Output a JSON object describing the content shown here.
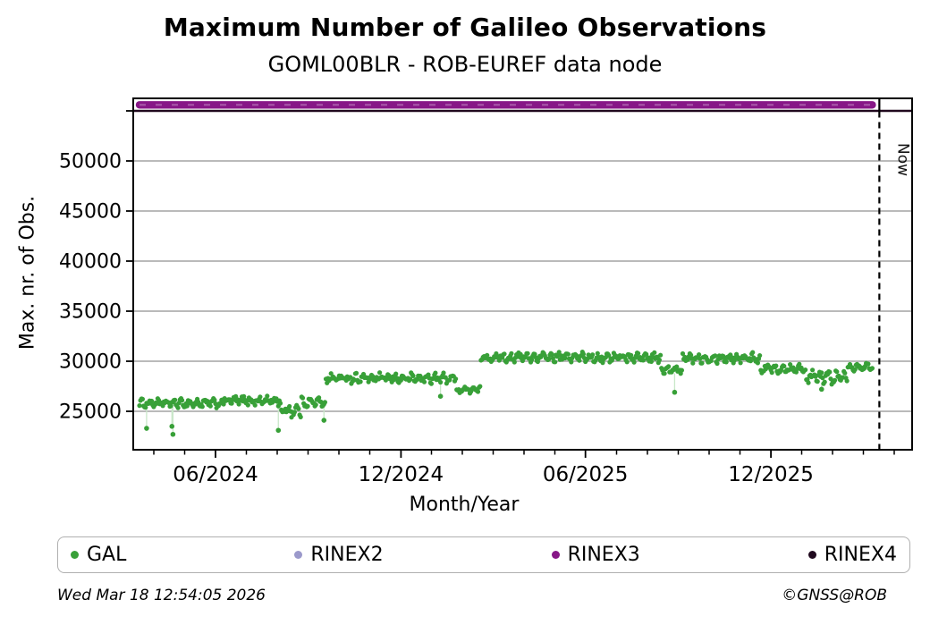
{
  "title": "Maximum Number of Galileo Observations",
  "subtitle": "GOML00BLR - ROB-EUREF data node",
  "footer": {
    "timestamp": "Wed Mar 18 12:54:05 2026",
    "credit": "©GNSS@ROB"
  },
  "legend": {
    "items": [
      {
        "label": "GAL",
        "color": "#38a038"
      },
      {
        "label": "RINEX2",
        "color": "#9b99cb"
      },
      {
        "label": "RINEX3",
        "color": "#871787"
      },
      {
        "label": "RINEX4",
        "color": "#20091e"
      }
    ]
  },
  "chart_data": {
    "type": "scatter",
    "title": "Maximum Number of Galileo Observations",
    "subtitle": "GOML00BLR - ROB-EUREF data node",
    "xlabel": "Month/Year",
    "ylabel": "Max. nr. of Obs.",
    "xlim": [
      "2024-03-11",
      "2026-04-19"
    ],
    "ylim": [
      21150,
      56250
    ],
    "grid": true,
    "grid_color": "#b0b0b0",
    "legend_position": "bottom",
    "yticks": [
      {
        "value": 25000,
        "label": "25000"
      },
      {
        "value": 30000,
        "label": "30000"
      },
      {
        "value": 35000,
        "label": "35000"
      },
      {
        "value": 40000,
        "label": "40000"
      },
      {
        "value": 45000,
        "label": "45000"
      },
      {
        "value": 50000,
        "label": "50000"
      },
      {
        "value": 55000,
        "label": ""
      }
    ],
    "xticks_major": [
      {
        "date": "2024-06-01",
        "label": "06/2024"
      },
      {
        "date": "2024-12-01",
        "label": "12/2024"
      },
      {
        "date": "2025-06-01",
        "label": "06/2025"
      },
      {
        "date": "2025-12-01",
        "label": "12/2025"
      }
    ],
    "minor_ticks": "monthly",
    "now_marker": {
      "date": "2026-03-18",
      "label": "Now"
    },
    "series": [
      {
        "name": "GAL",
        "color": "#38a038",
        "stem_color": "#c9e7c9",
        "marker": "dot",
        "cadence": "daily",
        "start": "2024-03-18",
        "end": "2026-03-11",
        "segments": [
          {
            "start": "2024-03-18",
            "end": "2024-06-08",
            "base": 25800,
            "spread": 420
          },
          {
            "start": "2024-06-08",
            "end": "2024-08-04",
            "base": 26050,
            "spread": 480
          },
          {
            "start": "2024-08-04",
            "end": "2024-08-24",
            "base": 25100,
            "spread": 650
          },
          {
            "start": "2024-08-24",
            "end": "2024-09-17",
            "base": 25900,
            "spread": 480
          },
          {
            "start": "2024-09-17",
            "end": "2025-01-24",
            "base": 28300,
            "spread": 480
          },
          {
            "start": "2025-01-24",
            "end": "2025-02-17",
            "base": 27150,
            "spread": 380
          },
          {
            "start": "2025-02-17",
            "end": "2025-08-14",
            "base": 30400,
            "spread": 480
          },
          {
            "start": "2025-08-14",
            "end": "2025-09-04",
            "base": 29100,
            "spread": 400
          },
          {
            "start": "2025-09-04",
            "end": "2025-11-20",
            "base": 30350,
            "spread": 480
          },
          {
            "start": "2025-11-20",
            "end": "2026-01-04",
            "base": 29300,
            "spread": 480
          },
          {
            "start": "2026-01-04",
            "end": "2026-02-14",
            "base": 28400,
            "spread": 650
          },
          {
            "start": "2026-02-14",
            "end": "2026-03-11",
            "base": 29500,
            "spread": 430
          }
        ],
        "outliers": [
          {
            "date": "2024-03-25",
            "value": 23300
          },
          {
            "date": "2024-04-19",
            "value": 23500
          },
          {
            "date": "2024-04-20",
            "value": 22700
          },
          {
            "date": "2024-08-02",
            "value": 23100
          },
          {
            "date": "2024-09-16",
            "value": 24100
          },
          {
            "date": "2025-01-09",
            "value": 26500
          },
          {
            "date": "2025-08-28",
            "value": 26900
          },
          {
            "date": "2026-01-20",
            "value": 27200
          }
        ]
      },
      {
        "name": "RINEX2",
        "color": "#9b99cb",
        "marker": "dot",
        "visible_points": "none"
      },
      {
        "name": "RINEX3",
        "color": "#871787",
        "marker": "dot",
        "style": "dense-horizontal-band",
        "value": 55600,
        "start": "2024-03-18",
        "end": "2026-03-11"
      },
      {
        "name": "RINEX4",
        "color": "#20091e",
        "marker": "dot",
        "style": "dense-horizontal-band",
        "value": 55000,
        "start": "2024-03-11",
        "end": "2026-04-19"
      }
    ]
  }
}
